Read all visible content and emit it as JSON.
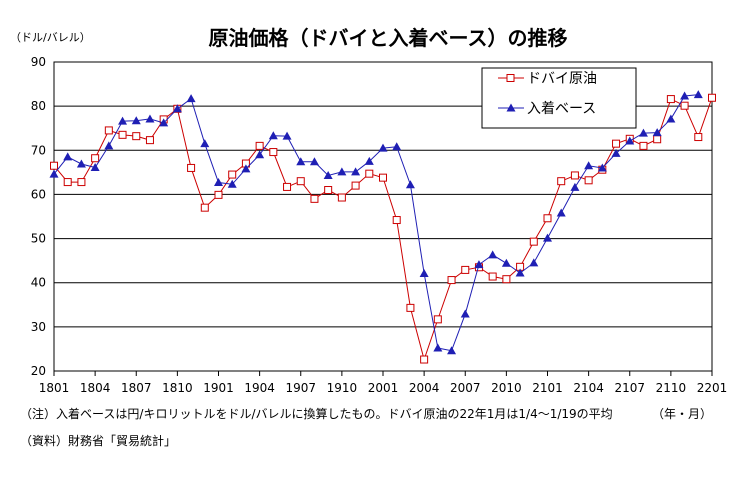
{
  "chart_data": {
    "type": "line",
    "title": "原油価格（ドバイと入着ベース）の推移",
    "ylabel": "（ドル/バレル）",
    "xlabel": "（年・月）",
    "ylim": [
      20,
      90
    ],
    "yticks": [
      20,
      30,
      40,
      50,
      60,
      70,
      80,
      90
    ],
    "grid": true,
    "legend_position": "top-right",
    "xtick_labels": [
      "1801",
      "1804",
      "1807",
      "1810",
      "1901",
      "1904",
      "1907",
      "1910",
      "2001",
      "2004",
      "2007",
      "2010",
      "2101",
      "2104",
      "2107",
      "2110",
      "2201"
    ],
    "x": [
      "1801",
      "1802",
      "1803",
      "1804",
      "1805",
      "1806",
      "1807",
      "1808",
      "1809",
      "1810",
      "1811",
      "1812",
      "1901",
      "1902",
      "1903",
      "1904",
      "1905",
      "1906",
      "1907",
      "1908",
      "1909",
      "1910",
      "1911",
      "1912",
      "2001",
      "2002",
      "2003",
      "2004",
      "2005",
      "2006",
      "2007",
      "2008",
      "2009",
      "2010",
      "2011",
      "2012",
      "2101",
      "2102",
      "2103",
      "2104",
      "2105",
      "2106",
      "2107",
      "2108",
      "2109",
      "2110",
      "2111",
      "2112",
      "2201"
    ],
    "series": [
      {
        "name": "ドバイ原油",
        "color": "#cc0000",
        "marker": "open-square",
        "values": [
          66.5,
          62.8,
          62.8,
          68.2,
          74.5,
          73.5,
          73.2,
          72.3,
          77.0,
          79.4,
          66.0,
          57.0,
          59.9,
          64.5,
          67.0,
          71.0,
          69.6,
          61.7,
          63.0,
          59.0,
          61.0,
          59.3,
          62.0,
          64.7,
          63.8,
          54.2,
          34.3,
          22.6,
          31.7,
          40.6,
          42.9,
          43.5,
          41.4,
          40.8,
          43.6,
          49.3,
          54.6,
          63.0,
          64.3,
          63.2,
          65.6,
          71.5,
          72.6,
          71.0,
          72.5,
          81.6,
          80.1,
          73.0,
          81.9
        ]
      },
      {
        "name": "入着ベース",
        "color": "#1f1fb4",
        "marker": "filled-triangle",
        "values": [
          64.6,
          68.5,
          66.9,
          66.1,
          71.0,
          76.6,
          76.7,
          77.1,
          76.2,
          79.4,
          81.7,
          71.5,
          62.7,
          62.3,
          65.8,
          69.0,
          73.3,
          73.2,
          67.4,
          67.4,
          64.3,
          65.1,
          65.1,
          67.5,
          70.5,
          70.8,
          62.2,
          42.1,
          25.2,
          24.6,
          32.9,
          44.1,
          46.3,
          44.4,
          42.2,
          44.5,
          50.1,
          55.8,
          61.6,
          66.5,
          66.0,
          69.3,
          72.1,
          73.9,
          74.0,
          77.1,
          82.3,
          82.6,
          null
        ]
      }
    ]
  },
  "notes": {
    "note": "（注）入着ベースは円/キロリットルをドル/バレルに換算したもの。ドバイ原油の22年1月は1/4～1/19の平均",
    "source": "（資料）財務省「貿易統計」"
  }
}
